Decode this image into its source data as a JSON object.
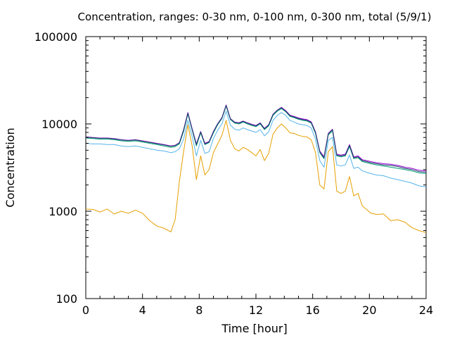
{
  "chart_data": {
    "type": "line",
    "title": "Concentration, ranges: 0-30 nm, 0-100 nm, 0-300 nm, total (5/9/1)",
    "xlabel": "Time [hour]",
    "ylabel": "Concentration",
    "xlim": [
      0,
      24
    ],
    "ylim": [
      100,
      100000
    ],
    "yscale": "log",
    "xticks": [
      "0",
      "4",
      "8",
      "12",
      "16",
      "20",
      "24"
    ],
    "xtick_values": [
      0,
      4,
      8,
      12,
      16,
      20,
      24
    ],
    "yticks": [
      "100",
      "1000",
      "10000",
      "100000"
    ],
    "ytick_values": [
      100,
      1000,
      10000,
      100000
    ],
    "grid": false,
    "series": [
      {
        "color": "#e69f00",
        "x": [
          0,
          0.5,
          1,
          1.5,
          2,
          2.5,
          3,
          3.5,
          4,
          4.5,
          5,
          5.5,
          6,
          6.3,
          6.6,
          6.9,
          7.2,
          7.5,
          7.8,
          8.1,
          8.4,
          8.7,
          9.0,
          9.3,
          9.6,
          9.9,
          10.2,
          10.5,
          10.8,
          11.1,
          11.4,
          11.7,
          12.0,
          12.3,
          12.6,
          12.9,
          13.2,
          13.5,
          13.8,
          14.1,
          14.4,
          14.7,
          15.0,
          15.3,
          15.6,
          15.9,
          16.2,
          16.5,
          16.8,
          17.1,
          17.4,
          17.7,
          18.0,
          18.3,
          18.6,
          18.9,
          19.2,
          19.5,
          19.8,
          20.1,
          20.5,
          21,
          21.5,
          22,
          22.5,
          23,
          23.5,
          24
        ],
        "y": [
          1060,
          1050,
          980,
          1060,
          930,
          1000,
          950,
          1030,
          950,
          780,
          680,
          640,
          580,
          800,
          2200,
          4800,
          9800,
          5600,
          2300,
          4300,
          2600,
          3000,
          4700,
          5900,
          7400,
          11000,
          6500,
          5200,
          4900,
          5400,
          5100,
          4700,
          4300,
          5100,
          3800,
          4600,
          7600,
          9000,
          10000,
          9000,
          7900,
          7800,
          7400,
          7200,
          7100,
          6600,
          4700,
          2000,
          1800,
          4800,
          5500,
          1700,
          1600,
          1700,
          2500,
          1500,
          1600,
          1150,
          1050,
          950,
          920,
          930,
          780,
          800,
          750,
          650,
          600,
          570
        ]
      },
      {
        "color": "#56b4e9",
        "x": [
          0,
          0.5,
          1,
          1.5,
          2,
          2.5,
          3,
          3.5,
          4,
          4.5,
          5,
          5.5,
          6,
          6.3,
          6.6,
          6.9,
          7.2,
          7.5,
          7.8,
          8.1,
          8.4,
          8.7,
          9.0,
          9.3,
          9.6,
          9.9,
          10.2,
          10.5,
          10.8,
          11.1,
          11.4,
          11.7,
          12.0,
          12.3,
          12.6,
          12.9,
          13.2,
          13.5,
          13.8,
          14.1,
          14.4,
          14.7,
          15.0,
          15.3,
          15.6,
          15.9,
          16.2,
          16.5,
          16.8,
          17.1,
          17.4,
          17.7,
          18.0,
          18.3,
          18.6,
          18.9,
          19.2,
          19.5,
          19.8,
          20.1,
          20.5,
          21,
          21.5,
          22,
          22.5,
          23,
          23.5,
          24
        ],
        "y": [
          6000,
          5900,
          5900,
          5800,
          5800,
          5600,
          5500,
          5600,
          5400,
          5200,
          5000,
          4900,
          4700,
          4800,
          5200,
          6700,
          11000,
          7200,
          4300,
          6500,
          4600,
          4800,
          6800,
          8500,
          10000,
          14000,
          9700,
          8700,
          8500,
          9000,
          8600,
          8300,
          8000,
          8600,
          7300,
          8100,
          11000,
          12500,
          13500,
          12500,
          11000,
          10500,
          10000,
          9800,
          9600,
          9000,
          6700,
          3800,
          3200,
          6500,
          7000,
          3400,
          3300,
          3400,
          4400,
          3100,
          3200,
          2900,
          2800,
          2700,
          2600,
          2550,
          2400,
          2300,
          2200,
          2100,
          1950,
          1900
        ]
      },
      {
        "color": "#009e73",
        "x": [
          0,
          0.5,
          1,
          1.5,
          2,
          2.5,
          3,
          3.5,
          4,
          4.5,
          5,
          5.5,
          6,
          6.3,
          6.6,
          6.9,
          7.2,
          7.5,
          7.8,
          8.1,
          8.4,
          8.7,
          9.0,
          9.3,
          9.6,
          9.9,
          10.2,
          10.5,
          10.8,
          11.1,
          11.4,
          11.7,
          12.0,
          12.3,
          12.6,
          12.9,
          13.2,
          13.5,
          13.8,
          14.1,
          14.4,
          14.7,
          15.0,
          15.3,
          15.6,
          15.9,
          16.2,
          16.5,
          16.8,
          17.1,
          17.4,
          17.7,
          18.0,
          18.3,
          18.6,
          18.9,
          19.2,
          19.5,
          19.8,
          20.1,
          20.5,
          21,
          21.5,
          22,
          22.5,
          23,
          23.5,
          24
        ],
        "y": [
          6900,
          6800,
          6700,
          6700,
          6600,
          6400,
          6300,
          6400,
          6200,
          6000,
          5800,
          5600,
          5400,
          5500,
          5900,
          8200,
          13000,
          8500,
          5600,
          7900,
          5800,
          6100,
          7900,
          9800,
          11500,
          16000,
          11200,
          10200,
          10000,
          10500,
          10000,
          9600,
          9300,
          10000,
          8600,
          9500,
          12500,
          14000,
          15000,
          13800,
          12200,
          11800,
          11300,
          11000,
          10800,
          10200,
          7800,
          4700,
          4000,
          7500,
          8300,
          4300,
          4200,
          4300,
          5500,
          4000,
          4100,
          3700,
          3600,
          3500,
          3400,
          3300,
          3200,
          3100,
          3000,
          2900,
          2750,
          2700
        ]
      },
      {
        "color": "#9400d3",
        "x": [
          0,
          0.5,
          1,
          1.5,
          2,
          2.5,
          3,
          3.5,
          4,
          4.5,
          5,
          5.5,
          6,
          6.3,
          6.6,
          6.9,
          7.2,
          7.5,
          7.8,
          8.1,
          8.4,
          8.7,
          9.0,
          9.3,
          9.6,
          9.9,
          10.2,
          10.5,
          10.8,
          11.1,
          11.4,
          11.7,
          12.0,
          12.3,
          12.6,
          12.9,
          13.2,
          13.5,
          13.8,
          14.1,
          14.4,
          14.7,
          15.0,
          15.3,
          15.6,
          15.9,
          16.2,
          16.5,
          16.8,
          17.1,
          17.4,
          17.7,
          18.0,
          18.3,
          18.6,
          18.9,
          19.2,
          19.5,
          19.8,
          20.1,
          20.5,
          21,
          21.5,
          22,
          22.5,
          23,
          23.5,
          24
        ],
        "y": [
          7100,
          7000,
          6900,
          6900,
          6800,
          6600,
          6500,
          6600,
          6400,
          6200,
          6000,
          5800,
          5600,
          5700,
          6100,
          8600,
          13500,
          8800,
          5900,
          8200,
          6000,
          6300,
          8200,
          10100,
          11800,
          16500,
          11500,
          10500,
          10300,
          10800,
          10300,
          9900,
          9600,
          10300,
          8900,
          9800,
          12900,
          14400,
          15500,
          14200,
          12600,
          12200,
          11700,
          11400,
          11200,
          10600,
          8100,
          4900,
          4200,
          7800,
          8700,
          4500,
          4400,
          4500,
          5800,
          4200,
          4300,
          3900,
          3800,
          3700,
          3600,
          3500,
          3450,
          3350,
          3200,
          3100,
          2950,
          2900
        ]
      },
      {
        "color": "#1f3a6e",
        "x": [
          0,
          0.5,
          1,
          1.5,
          2,
          2.5,
          3,
          3.5,
          4,
          4.5,
          5,
          5.5,
          6,
          6.3,
          6.6,
          6.9,
          7.2,
          7.5,
          7.8,
          8.1,
          8.4,
          8.7,
          9.0,
          9.3,
          9.6,
          9.9,
          10.2,
          10.5,
          10.8,
          11.1,
          11.4,
          11.7,
          12.0,
          12.3,
          12.6,
          12.9,
          13.2,
          13.5,
          13.8,
          14.1,
          14.4,
          14.7,
          15.0,
          15.3,
          15.6,
          15.9,
          16.2,
          16.5,
          16.8,
          17.1,
          17.4,
          17.7,
          18.0,
          18.3,
          18.6,
          18.9,
          19.2,
          19.5,
          19.8,
          20.1,
          20.5,
          21,
          21.5,
          22,
          22.5,
          23,
          23.5,
          24
        ],
        "y": [
          7050,
          6950,
          6850,
          6850,
          6750,
          6550,
          6450,
          6550,
          6350,
          6150,
          5950,
          5750,
          5550,
          5650,
          6050,
          8500,
          13300,
          8700,
          5800,
          8100,
          5900,
          6200,
          8100,
          10000,
          11700,
          16300,
          11400,
          10400,
          10200,
          10700,
          10200,
          9800,
          9500,
          10200,
          8800,
          9700,
          12800,
          14300,
          15300,
          14000,
          12400,
          12000,
          11500,
          11200,
          11000,
          10400,
          8000,
          4800,
          4100,
          7700,
          8600,
          4400,
          4300,
          4400,
          5700,
          4100,
          4200,
          3800,
          3700,
          3600,
          3500,
          3400,
          3350,
          3250,
          3100,
          3000,
          2850,
          2800
        ]
      }
    ]
  }
}
